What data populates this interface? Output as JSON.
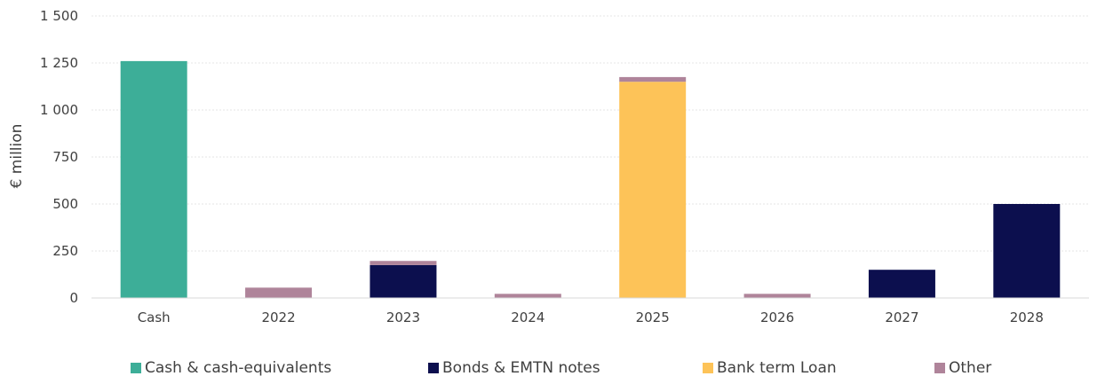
{
  "chart_data": {
    "type": "bar",
    "stacked": true,
    "ylabel": "€ million",
    "ylim": [
      0,
      1500
    ],
    "yticks": [
      0,
      250,
      500,
      750,
      1000,
      1250,
      1500
    ],
    "ytick_labels": [
      "0",
      "250",
      "500",
      "750",
      "1 000",
      "1 250",
      "1 500"
    ],
    "grid": true,
    "legend_position": "bottom",
    "categories": [
      "Cash",
      "2022",
      "2023",
      "2024",
      "2025",
      "2026",
      "2027",
      "2028"
    ],
    "series": [
      {
        "name": "Cash & cash-equivalents",
        "color": "#3DAE98",
        "values": [
          1260,
          0,
          0,
          0,
          0,
          0,
          0,
          0
        ]
      },
      {
        "name": "Bonds & EMTN notes",
        "color": "#0C0F4E",
        "values": [
          0,
          0,
          175,
          0,
          0,
          0,
          150,
          500
        ]
      },
      {
        "name": "Bank term Loan",
        "color": "#FDC358",
        "values": [
          0,
          0,
          0,
          0,
          1150,
          0,
          0,
          0
        ]
      },
      {
        "name": "Other",
        "color": "#AF849A",
        "values": [
          0,
          55,
          22,
          22,
          25,
          22,
          0,
          0
        ]
      }
    ]
  }
}
